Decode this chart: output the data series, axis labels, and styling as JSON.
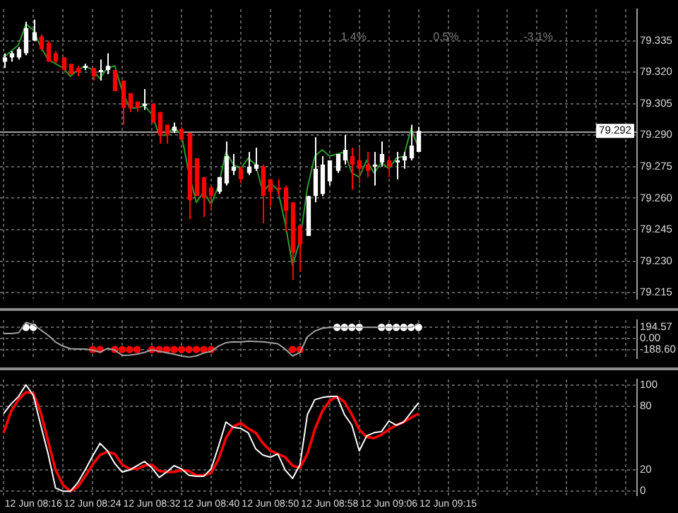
{
  "chart_data": [
    {
      "type": "candlestick",
      "categories": [
        null,
        null,
        null,
        null,
        null,
        null,
        null,
        null,
        null,
        null,
        null,
        null,
        null,
        null,
        null,
        null,
        null,
        null,
        null,
        null,
        null,
        null,
        null,
        null,
        null,
        null,
        null,
        null,
        null,
        null,
        null,
        null,
        null,
        null,
        null,
        null,
        null,
        null,
        null,
        null,
        null,
        null,
        null,
        null,
        null,
        null,
        null,
        null,
        null,
        null,
        null,
        null,
        null,
        null,
        null,
        null,
        null,
        null,
        null,
        null,
        null,
        null,
        null,
        null,
        null,
        null,
        null,
        null,
        null,
        null,
        null,
        null,
        null,
        null,
        null,
        null,
        null,
        null,
        null,
        null,
        null,
        null,
        null,
        null,
        null,
        null
      ],
      "ohlc": [
        [
          79.325,
          79.329,
          79.322,
          79.327
        ],
        [
          79.327,
          79.33,
          79.325,
          79.329
        ],
        [
          79.327,
          79.332,
          79.326,
          79.331
        ],
        [
          79.329,
          79.344,
          79.328,
          79.341
        ],
        [
          79.335,
          79.345,
          79.335,
          79.339
        ],
        [
          79.337,
          79.338,
          79.33,
          79.331
        ],
        [
          79.334,
          79.335,
          79.325,
          79.325
        ],
        [
          79.329,
          79.33,
          79.324,
          79.325
        ],
        [
          79.327,
          79.327,
          79.321,
          79.321
        ],
        [
          79.324,
          79.324,
          79.319,
          79.319
        ],
        [
          79.322,
          79.323,
          79.318,
          79.32
        ],
        [
          79.322,
          79.324,
          79.321,
          79.323
        ],
        [
          79.322,
          79.322,
          79.316,
          79.318
        ],
        [
          79.32,
          79.326,
          79.316,
          79.321
        ],
        [
          79.321,
          79.329,
          79.319,
          79.323
        ],
        [
          79.321,
          79.321,
          79.311,
          79.311
        ],
        [
          79.316,
          79.316,
          79.295,
          79.303
        ],
        [
          79.31,
          79.31,
          79.301,
          79.303
        ],
        [
          79.306,
          79.306,
          79.301,
          79.303
        ],
        [
          79.304,
          79.312,
          79.302,
          79.305
        ],
        [
          79.305,
          79.305,
          79.296,
          79.296
        ],
        [
          79.301,
          79.301,
          79.286,
          79.29
        ],
        [
          79.295,
          79.295,
          79.286,
          79.29
        ],
        [
          79.292,
          79.296,
          79.291,
          79.294
        ],
        [
          79.293,
          79.294,
          79.287,
          79.288
        ],
        [
          79.291,
          79.291,
          79.25,
          79.259
        ],
        [
          79.279,
          79.279,
          79.261,
          79.261
        ],
        [
          79.27,
          79.27,
          79.251,
          79.26
        ],
        [
          79.265,
          79.266,
          79.254,
          79.261
        ],
        [
          79.263,
          79.27,
          79.262,
          79.27
        ],
        [
          79.267,
          79.287,
          79.266,
          79.28
        ],
        [
          79.273,
          79.281,
          79.271,
          79.275
        ],
        [
          79.274,
          79.275,
          79.267,
          79.269
        ],
        [
          79.272,
          79.282,
          79.271,
          79.275
        ],
        [
          79.274,
          79.284,
          79.273,
          79.276
        ],
        [
          79.275,
          79.276,
          79.248,
          79.261
        ],
        [
          79.269,
          79.269,
          79.256,
          79.263
        ],
        [
          79.265,
          79.269,
          79.261,
          79.264
        ],
        [
          79.265,
          79.266,
          79.244,
          79.254
        ],
        [
          79.258,
          79.258,
          79.221,
          79.234
        ],
        [
          79.247,
          79.247,
          79.225,
          79.238
        ],
        [
          79.242,
          79.261,
          79.242,
          79.261
        ],
        [
          79.261,
          79.289,
          79.258,
          79.274
        ],
        [
          79.262,
          79.28,
          79.261,
          79.276
        ],
        [
          79.268,
          79.278,
          79.266,
          79.278
        ],
        [
          79.273,
          79.281,
          79.272,
          79.281
        ],
        [
          79.278,
          79.29,
          79.276,
          79.283
        ],
        [
          79.28,
          79.284,
          79.264,
          79.276
        ],
        [
          79.278,
          79.284,
          79.267,
          79.274
        ],
        [
          79.276,
          79.282,
          79.27,
          79.273
        ],
        [
          79.275,
          79.282,
          79.266,
          79.276
        ],
        [
          79.277,
          79.287,
          79.275,
          79.281
        ],
        [
          79.278,
          79.28,
          79.27,
          79.275
        ],
        [
          79.277,
          79.282,
          79.269,
          79.278
        ],
        [
          79.278,
          79.282,
          79.274,
          79.28
        ],
        [
          79.279,
          79.295,
          79.278,
          79.285
        ],
        [
          79.282,
          79.294,
          79.282,
          79.292
        ],
        null,
        null,
        null,
        null,
        null,
        null,
        null,
        null,
        null,
        null,
        null,
        null,
        null,
        null,
        null,
        null,
        null,
        null,
        null,
        null,
        null,
        null,
        null,
        null,
        null,
        null,
        null,
        null,
        null
      ],
      "colors": [
        "#ffffff",
        "#ffffff",
        "#ffffff",
        "#ffffff",
        "#ffffff",
        "#ff0000",
        "#ff0000",
        "#ff0000",
        "#ff0000",
        "#ff0000",
        "#ff0000",
        "#ffffff",
        "#ff0000",
        "#ffffff",
        "#ffffff",
        "#ff0000",
        "#ff0000",
        "#ff0000",
        "#ff0000",
        "#ffffff",
        "#ff0000",
        "#ff0000",
        "#ff0000",
        "#ffffff",
        "#ff0000",
        "#ff0000",
        "#ff0000",
        "#ff0000",
        "#ff0000",
        "#ffffff",
        "#ffffff",
        "#ffffff",
        "#ff0000",
        "#ffffff",
        "#ffffff",
        "#ff0000",
        "#ff0000",
        "#ff0000",
        "#ff0000",
        "#ff0000",
        "#ff0000",
        "#ffffff",
        "#ffffff",
        "#ffffff",
        "#ffffff",
        "#ffffff",
        "#ffffff",
        "#ff0000",
        "#ff0000",
        "#ff0000",
        "#ffffff",
        "#ffffff",
        "#ff0000",
        "#ffffff",
        "#ffffff",
        "#ffffff",
        "#ffffff",
        null,
        null,
        null,
        null,
        null,
        null,
        null,
        null,
        null,
        null,
        null,
        null,
        null,
        null,
        null,
        null,
        null,
        null,
        null,
        null,
        null,
        null,
        null,
        null,
        null,
        null,
        null,
        null,
        null
      ],
      "series": [
        {
          "type": "line",
          "color": "#2e9b2e",
          "values": [
            79.327,
            79.33,
            79.333,
            79.343,
            79.34,
            79.332,
            79.326,
            79.324,
            79.322,
            79.318,
            79.321,
            79.323,
            79.321,
            79.317,
            79.322,
            79.323,
            79.311,
            79.303,
            79.303,
            79.304,
            79.3,
            79.29,
            79.29,
            79.294,
            79.29,
            79.272,
            79.258,
            79.263,
            79.257,
            79.266,
            79.282,
            79.276,
            79.274,
            79.279,
            79.276,
            79.263,
            79.267,
            79.264,
            79.248,
            79.228,
            79.24,
            79.265,
            79.28,
            79.283,
            79.28,
            79.281,
            79.282,
            79.272,
            79.27,
            79.278,
            79.272,
            79.277,
            79.274,
            79.279,
            79.28,
            79.293,
            79.284,
            null,
            null,
            null,
            null,
            null,
            null,
            null,
            null,
            null,
            null,
            null,
            null,
            null,
            null,
            null,
            null,
            null,
            null,
            null,
            null,
            null,
            null,
            null,
            null,
            null,
            null,
            null,
            null,
            null
          ]
        }
      ],
      "ylim": [
        79.212,
        79.35
      ],
      "yticks": [
        79.215,
        {
          "value": 79.23,
          "label": "79.230"
        },
        79.245,
        {
          "value": 79.26,
          "label": "79.260"
        },
        79.275,
        {
          "value": 79.29,
          "label": "79.290"
        },
        79.305,
        {
          "value": 79.32,
          "label": "79.320"
        },
        79.335
      ],
      "grid": true,
      "tick_labels": "y",
      "ref_lines": [
        {
          "axis": "y",
          "value": 79.292,
          "label": "79.292",
          "color": "#a0a0a0"
        }
      ],
      "annotations": [
        "1.4%",
        "0.5%",
        "-3.1%"
      ]
    },
    {
      "type": "line",
      "categories": [
        null,
        null,
        null,
        null,
        null,
        null,
        null,
        null,
        null,
        null,
        null,
        null,
        null,
        null,
        null,
        null,
        null,
        null,
        null,
        null,
        null,
        null,
        null,
        null,
        null,
        null,
        null,
        null,
        null,
        null,
        null,
        null,
        null,
        null,
        null,
        null,
        null,
        null,
        null,
        null,
        null,
        null,
        null,
        null,
        null,
        null,
        null,
        null,
        null,
        null,
        null,
        null,
        null,
        null,
        null,
        null,
        null,
        null,
        null,
        null,
        null,
        null,
        null,
        null,
        null,
        null,
        null,
        null,
        null,
        null,
        null,
        null,
        null,
        null,
        null,
        null,
        null,
        null,
        null,
        null,
        null,
        null,
        null,
        null,
        null,
        null
      ],
      "series": [
        {
          "type": "line",
          "color": "#a0a0a0",
          "values": [
            87,
            87,
            100,
            280,
            240,
            150,
            57,
            -60,
            -130,
            -175,
            -180,
            -180,
            -200,
            -237,
            -170,
            -200,
            -290,
            -285,
            -270,
            -240,
            -195,
            -220,
            -245,
            -270,
            -300,
            -320,
            -300,
            -250,
            -220,
            -130,
            -70,
            -55,
            -60,
            -45,
            -50,
            -55,
            -70,
            -90,
            -180,
            -300,
            -240,
            30,
            130,
            180,
            194,
            194,
            194,
            194,
            194,
            194,
            194,
            194,
            194,
            194,
            194,
            194,
            260,
            null,
            null,
            null,
            null,
            null,
            null,
            null,
            null,
            null,
            null,
            null,
            null,
            null,
            null,
            null,
            null,
            null,
            null,
            null,
            null,
            null,
            null,
            null,
            null,
            null,
            null,
            null,
            null,
            null
          ]
        },
        {
          "type": "scatter",
          "color": "#ffffff",
          "marker": "circle",
          "values": [
            null,
            null,
            null,
            194.57,
            194.57,
            null,
            null,
            null,
            null,
            null,
            null,
            null,
            null,
            null,
            null,
            null,
            null,
            null,
            null,
            null,
            null,
            null,
            null,
            null,
            null,
            null,
            null,
            null,
            null,
            null,
            null,
            null,
            null,
            null,
            null,
            null,
            null,
            null,
            null,
            null,
            null,
            null,
            null,
            null,
            null,
            194.57,
            194.57,
            194.57,
            194.57,
            null,
            null,
            194.57,
            194.57,
            194.57,
            194.57,
            194.57,
            194.57,
            null,
            null,
            null,
            null,
            null,
            null,
            null,
            null,
            null,
            null,
            null,
            null,
            null,
            null,
            null,
            null,
            null,
            null,
            null,
            null,
            null,
            null,
            null,
            null,
            null,
            null,
            null,
            null,
            null
          ]
        },
        {
          "type": "scatter",
          "color": "#ff0000",
          "marker": "circle",
          "values": [
            null,
            null,
            null,
            null,
            null,
            null,
            null,
            null,
            null,
            null,
            null,
            null,
            -188.6,
            -188.6,
            null,
            -188.6,
            -188.6,
            -188.6,
            -188.6,
            null,
            -188.6,
            -188.6,
            -188.6,
            -188.6,
            -188.6,
            -188.6,
            -188.6,
            -188.6,
            -188.6,
            null,
            null,
            null,
            null,
            null,
            null,
            null,
            null,
            null,
            null,
            -188.6,
            -188.6,
            null,
            null,
            null,
            null,
            null,
            null,
            null,
            null,
            null,
            null,
            null,
            null,
            null,
            null,
            null,
            null,
            null,
            null,
            null,
            null,
            null,
            null,
            null,
            null,
            null,
            null,
            null,
            null,
            null,
            null,
            null,
            null,
            null,
            null,
            null,
            null,
            null,
            null,
            null,
            null,
            null,
            null,
            null,
            null,
            null
          ]
        }
      ],
      "ylim": [
        -340,
        320
      ],
      "yticks": [
        {
          "value": -188.6,
          "label": "-188.60"
        },
        {
          "value": 0,
          "label": "0.00"
        },
        {
          "value": 194.57,
          "label": "194.57"
        }
      ],
      "grid": true,
      "tick_labels": "y"
    },
    {
      "type": "line",
      "categories": [
        null,
        null,
        null,
        null,
        "12 Jun 08:16",
        null,
        null,
        null,
        null,
        null,
        null,
        null,
        "12 Jun 08:24",
        null,
        null,
        null,
        null,
        null,
        null,
        null,
        "12 Jun 08:32",
        null,
        null,
        null,
        null,
        null,
        null,
        null,
        "12 Jun 08:40",
        null,
        null,
        null,
        null,
        null,
        null,
        null,
        "12 Jun 08:50",
        null,
        null,
        null,
        null,
        null,
        null,
        null,
        "12 Jun 08:58",
        null,
        null,
        null,
        null,
        null,
        null,
        null,
        "12 Jun 09:06",
        null,
        null,
        null,
        null,
        null,
        null,
        null,
        "12 Jun 09:15",
        null,
        null,
        null,
        null,
        null,
        null,
        null,
        null,
        null,
        null,
        null,
        null,
        null,
        null,
        null,
        null,
        null,
        null,
        null,
        null,
        null,
        null,
        null,
        null,
        null
      ],
      "series": [
        {
          "color": "#ffffff",
          "values": [
            73,
            82,
            89,
            100,
            90,
            62,
            35,
            3,
            0,
            0,
            8,
            20,
            33,
            45,
            38,
            26,
            18,
            20,
            24,
            28,
            22,
            13,
            18,
            24,
            21,
            15,
            14,
            14,
            21,
            42,
            65,
            60,
            59,
            55,
            40,
            34,
            32,
            35,
            20,
            12,
            25,
            72,
            86,
            88,
            89,
            89,
            72,
            62,
            38,
            52,
            55,
            56,
            66,
            62,
            65,
            74,
            83,
            null,
            null,
            null,
            null,
            null,
            null,
            null,
            null,
            null,
            null,
            null,
            null,
            null,
            null,
            null,
            null,
            null,
            null,
            null,
            null,
            null,
            null,
            null,
            null,
            null,
            null,
            null,
            null,
            null
          ]
        },
        {
          "color": "#ff0000",
          "values": [
            55,
            75,
            86,
            93,
            92,
            74,
            47,
            20,
            6,
            0,
            4,
            14,
            25,
            34,
            37,
            35,
            25,
            21,
            21,
            24,
            25,
            19,
            18,
            18,
            20,
            19,
            15,
            15,
            17,
            30,
            50,
            61,
            64,
            59,
            55,
            45,
            38,
            35,
            32,
            24,
            22,
            35,
            58,
            75,
            85,
            89,
            84,
            72,
            58,
            51,
            50,
            53,
            58,
            62,
            65,
            69,
            73,
            null,
            null,
            null,
            null,
            null,
            null,
            null,
            null,
            null,
            null,
            null,
            null,
            null,
            null,
            null,
            null,
            null,
            null,
            null,
            null,
            null,
            null,
            null,
            null,
            null,
            null,
            null,
            null,
            null
          ]
        }
      ],
      "ylim": [
        -4,
        105
      ],
      "yticks": [
        0,
        20,
        80,
        100
      ],
      "grid": true
    }
  ]
}
